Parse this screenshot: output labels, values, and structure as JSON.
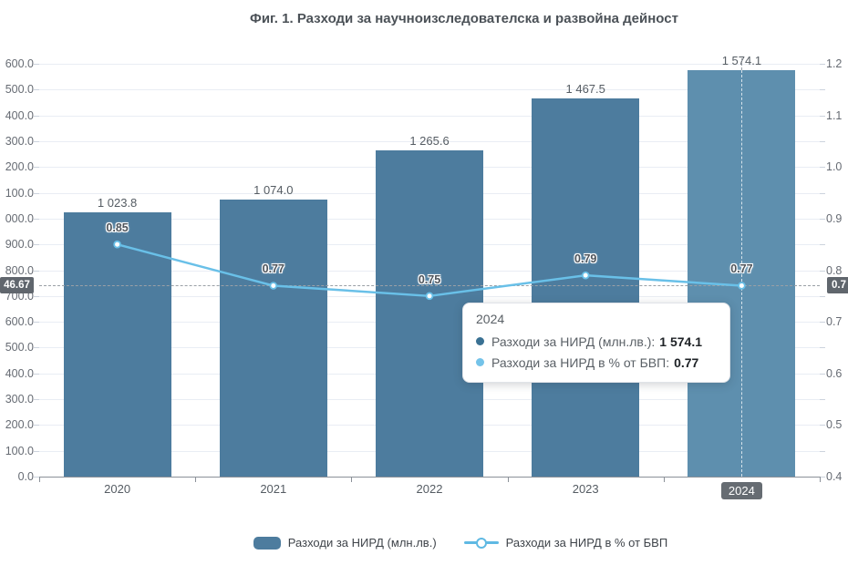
{
  "title": "Фиг. 1. Разходи за научноизследователска и развойна дейност",
  "chart_data": {
    "type": "bar",
    "categories": [
      "2020",
      "2021",
      "2022",
      "2023",
      "2024"
    ],
    "series": [
      {
        "name": "Разходи за НИРД (млн.лв.)",
        "type": "bar",
        "axis": "left",
        "values": [
          1023.8,
          1074.0,
          1265.6,
          1467.5,
          1574.1
        ],
        "value_labels": [
          "1 023.8",
          "1 074.0",
          "1 265.6",
          "1 467.5",
          "1 574.1"
        ],
        "color": "#4d7c9e",
        "highlight_color": "#5e8fae"
      },
      {
        "name": "Разходи за НИРД в % от БВП",
        "type": "line",
        "axis": "right",
        "values": [
          0.85,
          0.77,
          0.75,
          0.79,
          0.77
        ],
        "value_labels": [
          "0.85",
          "0.77",
          "0.75",
          "0.79",
          "0.77"
        ],
        "color": "#69c0e8"
      }
    ],
    "left_axis": {
      "min": 0,
      "max": 1600,
      "tick_step": 100,
      "tick_labels_top_to_bottom": [
        "600.0",
        "500.0",
        "400.0",
        "300.0",
        "200.0",
        "100.0",
        "000.0",
        "900.0",
        "800.0",
        "700.0",
        "600.0",
        "500.0",
        "400.0",
        "300.0",
        "200.0",
        "100.0",
        "0.0"
      ]
    },
    "right_axis": {
      "min": 0.4,
      "max": 1.2,
      "tick_step": 0.1,
      "minor_tick_step": 0.05,
      "tick_labels_top_to_bottom": [
        "1.2",
        "1.1",
        "1.0",
        "0.9",
        "0.8",
        "0.7",
        "0.6",
        "0.5",
        "0.4"
      ]
    },
    "grid": "horizontal",
    "highlighted_category": "2024",
    "crosshair": {
      "category": "2024",
      "left_axis_badge": "46.67",
      "right_axis_badge": "0.7"
    }
  },
  "tooltip": {
    "title": "2024",
    "rows": [
      {
        "label": "Разходи за НИРД (млн.лв.):",
        "value": "1 574.1",
        "dot_color": "#3a7193"
      },
      {
        "label": "Разходи за НИРД в % от БВП:",
        "value": "0.77",
        "dot_color": "#74c3e9"
      }
    ]
  },
  "legend": {
    "items": [
      {
        "label": "Разходи за НИРД (млн.лв.)",
        "marker": "bar",
        "color": "#4d7c9e"
      },
      {
        "label": "Разходи за НИРД в % от БВП",
        "marker": "line",
        "color": "#5fb9e3"
      }
    ]
  },
  "colors": {
    "grid": "#e9edf4",
    "axis_line": "#8b9198",
    "tick": "#ccd3dd",
    "crosshair": "#9aa0a6",
    "badge_bg": "#60666d",
    "title_text": "#4b5157"
  }
}
